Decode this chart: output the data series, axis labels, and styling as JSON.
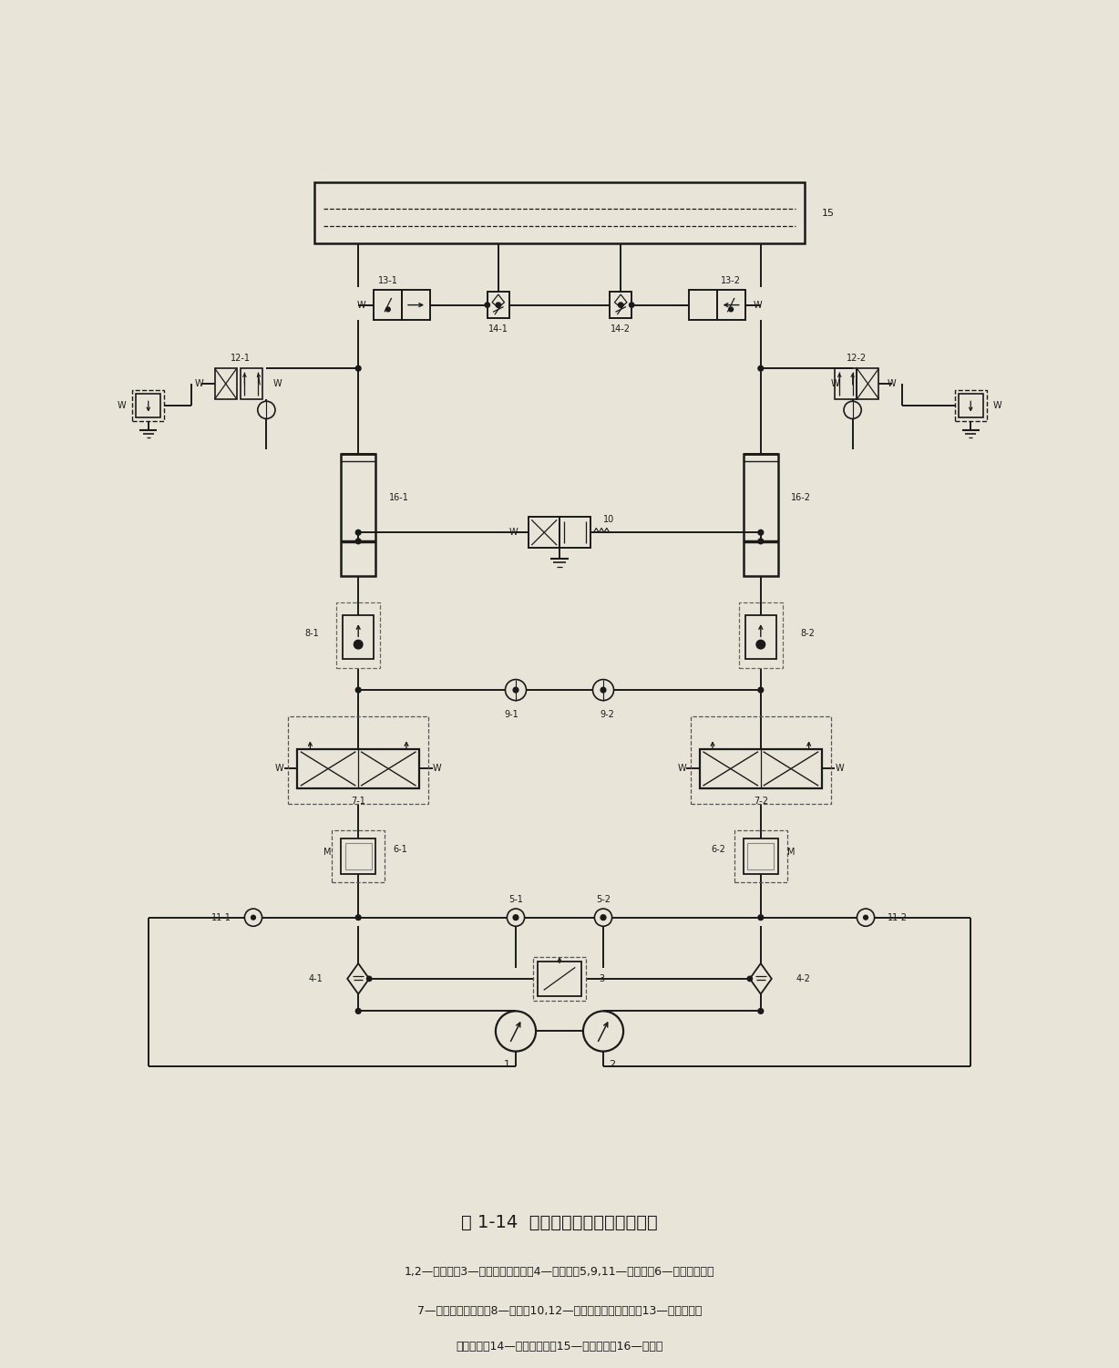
{
  "title": "图 1-14  压弯成形机液压系统原理图",
  "caption1": "1,2—液压泵；3—电液比例溢流阀；4—过滤器；5,9,11—单向鄀；6—定差减压鄀；",
  "caption2": "7—电液比例换向鄀；8—梭鄀；10,12—二位三通电磁换向鄀；13—二位二通液",
  "caption3": "动吸油鄀；14—单向节流鄀；15—高架油筱；16—液压缸",
  "bg_color": "#e8e4d8",
  "lc": "#1a1a1a"
}
